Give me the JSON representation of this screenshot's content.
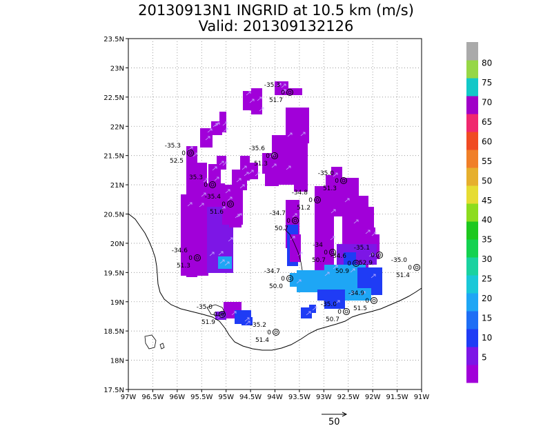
{
  "title": {
    "line1": "20130913N1 INGRID at 10.5 km (m/s)",
    "line2": "Valid: 201309132126"
  },
  "axes": {
    "lat_labels": [
      "23.5N",
      "23N",
      "22.5N",
      "22N",
      "21.5N",
      "21N",
      "20.5N",
      "20N",
      "19.5N",
      "19N",
      "18.5N",
      "18N",
      "17.5N"
    ],
    "lon_labels": [
      "97W",
      "96.5W",
      "96W",
      "95.5W",
      "95W",
      "94.5W",
      "94W",
      "93.5W",
      "93W",
      "92.5W",
      "92W",
      "91.5W",
      "91W"
    ],
    "lat_range": [
      17.5,
      23.5
    ],
    "lon_range": [
      -97,
      -91
    ],
    "grid": "dotted"
  },
  "colorbar": {
    "labels": [
      "5",
      "10",
      "15",
      "20",
      "25",
      "30",
      "35",
      "40",
      "45",
      "50",
      "55",
      "60",
      "65",
      "70",
      "75",
      "80"
    ],
    "colors": [
      "#a100d9",
      "#7d16e6",
      "#1f3cf5",
      "#1e6ef5",
      "#1ea6f5",
      "#19c8d8",
      "#19d2a0",
      "#14d250",
      "#1ec81e",
      "#8cdc1e",
      "#e6dc32",
      "#e6af2d",
      "#f07f28",
      "#f04b23",
      "#f0286e",
      "#a000c8",
      "#12c8c8",
      "#96d746",
      "#aaaaaa"
    ]
  },
  "wind_scale": {
    "label": "50"
  },
  "colors": {
    "violet": "#a100d9",
    "purple": "#7d16e6",
    "blue": "#1f3cf5",
    "lightblue": "#1ea6f5"
  },
  "stations": [
    {
      "top": "-35.3",
      "mid": "0",
      "bottom": "52.5"
    },
    {
      "top": "35.3",
      "mid": "0",
      "bottom": ""
    },
    {
      "top": "-35.4",
      "mid": "0",
      "bottom": "51.6"
    },
    {
      "top": "-35.6",
      "mid": "0",
      "bottom": "51.3"
    },
    {
      "top": "-35.3",
      "mid": "0",
      "bottom": "51.7"
    },
    {
      "top": "-34.8",
      "mid": "0",
      "bottom": "51.2"
    },
    {
      "top": "-35.0",
      "mid": "0",
      "bottom": "51.3"
    },
    {
      "top": "-34.7",
      "mid": "0",
      "bottom": "50.7"
    },
    {
      "top": "-34.6",
      "mid": "0",
      "bottom": "51.3"
    },
    {
      "top": "-34.7",
      "mid": "0",
      "bottom": "50.0"
    },
    {
      "top": "-34",
      "mid": "0",
      "bottom": "50.7"
    },
    {
      "top": "-34.6",
      "mid": "0",
      "bottom": "50.9"
    },
    {
      "top": "-35.1",
      "mid": "0",
      "bottom": "52.9"
    },
    {
      "top": "-35.0",
      "mid": "0",
      "bottom": "51.4"
    },
    {
      "top": "-34.9",
      "mid": "0",
      "bottom": "51.5"
    },
    {
      "top": "-35.0",
      "mid": "0",
      "bottom": "50.7"
    },
    {
      "top": "-35.0",
      "mid": "0",
      "bottom": "51.9"
    },
    {
      "top": "-35.2",
      "mid": "0",
      "bottom": "51.4"
    }
  ]
}
